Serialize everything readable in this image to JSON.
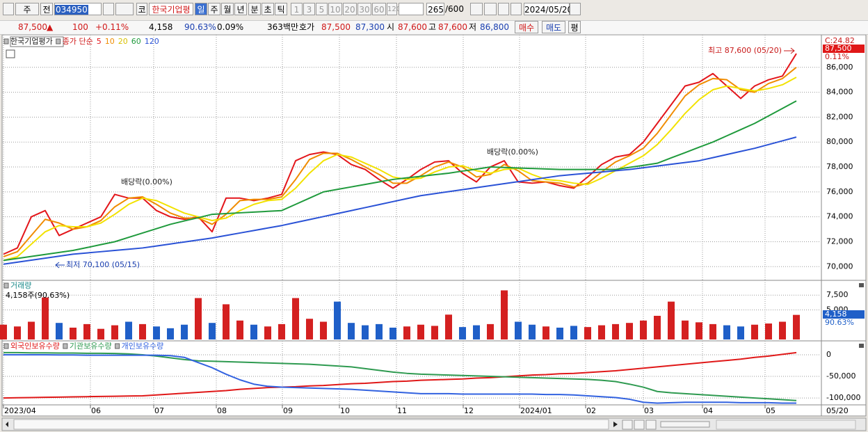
{
  "toolbar": {
    "period": "주",
    "scope": "전",
    "code": "034950",
    "market": "코",
    "name": "한국기업평",
    "intervals": [
      "일",
      "주",
      "월",
      "년",
      "분",
      "초",
      "틱"
    ],
    "units": [
      "1",
      "3",
      "5",
      "10",
      "20",
      "30",
      "60",
      "120"
    ],
    "count": "265",
    "count_max": "/600",
    "date": "2024/05/20"
  },
  "quote": {
    "price": "87,500",
    "direction": "▲",
    "change": "100",
    "change_pct": "+0.11%",
    "volume": "4,158",
    "volume_ratio": "90.63%",
    "turnover_pct": "0.09%",
    "amount": "363백만",
    "bid_ask_label": "호가",
    "ask": "87,500",
    "bid": "87,300",
    "open_label": "시",
    "open": "87,600",
    "high_label": "고",
    "high": "87,600",
    "low_label": "저",
    "low": "86,800",
    "buy": "매수",
    "sell": "매도",
    "avg": "평"
  },
  "chart_data": [
    {
      "type": "line",
      "title": "한국기업평가",
      "subtitle": "종가 단순",
      "series": [
        {
          "name": "5",
          "color": "#e3161b",
          "values": [
            71000,
            71500,
            74000,
            74500,
            72500,
            73000,
            73500,
            74000,
            75800,
            75500,
            75500,
            74500,
            74000,
            73800,
            74000,
            72800,
            75500,
            75500,
            75300,
            75500,
            75800,
            78500,
            79000,
            79200,
            79000,
            78200,
            77800,
            77000,
            76300,
            77000,
            77800,
            78400,
            78500,
            77500,
            76800,
            78000,
            78500,
            76800,
            76700,
            76800,
            76500,
            76300,
            77200,
            78200,
            78800,
            79000,
            80000,
            81500,
            83000,
            84500,
            84800,
            85500,
            84500,
            83500,
            84500,
            85000,
            85300,
            87100
          ]
        },
        {
          "name": "10",
          "color": "#f08c00",
          "values": [
            70800,
            71200,
            72500,
            73800,
            73500,
            73000,
            73200,
            73700,
            74800,
            75500,
            75600,
            75000,
            74300,
            73900,
            73900,
            73400,
            74200,
            75300,
            75400,
            75400,
            75600,
            77000,
            78600,
            79100,
            79100,
            78600,
            78000,
            77400,
            76700,
            76700,
            77300,
            78000,
            78400,
            78000,
            77200,
            77400,
            78200,
            77700,
            76900,
            76800,
            76700,
            76400,
            76700,
            77600,
            78400,
            78900,
            79500,
            80700,
            82200,
            83700,
            84600,
            85100,
            85000,
            84200,
            84000,
            84700,
            85100,
            86000
          ]
        },
        {
          "name": "20",
          "color": "#f2e200",
          "values": [
            70500,
            70800,
            71800,
            72800,
            73300,
            73200,
            73200,
            73500,
            74200,
            75000,
            75500,
            75300,
            74800,
            74300,
            74000,
            73700,
            73900,
            74500,
            75000,
            75300,
            75400,
            76300,
            77500,
            78500,
            79000,
            78800,
            78300,
            77800,
            77200,
            77000,
            77100,
            77600,
            78000,
            78100,
            77700,
            77500,
            77800,
            77900,
            77400,
            77000,
            76900,
            76700,
            76600,
            77100,
            77700,
            78300,
            78900,
            79800,
            81000,
            82300,
            83400,
            84200,
            84500,
            84300,
            84100,
            84300,
            84600,
            85200
          ]
        },
        {
          "name": "60",
          "color": "#1f9a3c",
          "values": [
            70500,
            70660,
            70820,
            70980,
            71140,
            71300,
            71530,
            71770,
            72000,
            72350,
            72700,
            73050,
            73400,
            73670,
            73930,
            74200,
            74260,
            74320,
            74380,
            74440,
            74500,
            75000,
            75500,
            76000,
            76200,
            76400,
            76600,
            76800,
            77000,
            77130,
            77250,
            77380,
            77500,
            77670,
            77830,
            78000,
            77960,
            77920,
            77880,
            77840,
            77800,
            77800,
            77800,
            77800,
            77800,
            77970,
            78130,
            78300,
            78730,
            79150,
            79580,
            80000,
            80500,
            81000,
            81500,
            82100,
            82700,
            83300
          ]
        },
        {
          "name": "120",
          "color": "#2a52d6",
          "values": [
            70200,
            70360,
            70520,
            70680,
            70840,
            71000,
            71100,
            71200,
            71300,
            71400,
            71500,
            71660,
            71820,
            71980,
            72140,
            72300,
            72500,
            72700,
            72900,
            73100,
            73300,
            73540,
            73780,
            74020,
            74260,
            74500,
            74740,
            74980,
            75220,
            75460,
            75700,
            75860,
            76020,
            76180,
            76340,
            76500,
            76660,
            76820,
            76980,
            77140,
            77300,
            77400,
            77500,
            77600,
            77700,
            77800,
            77940,
            78080,
            78220,
            78360,
            78500,
            78750,
            79000,
            79250,
            79500,
            79800,
            80100,
            80400
          ]
        }
      ],
      "ylim": [
        68900,
        88500
      ],
      "yticks": [
        {
          "value": 70000,
          "label": "70,000"
        },
        {
          "value": 72000,
          "label": "72,000"
        },
        {
          "value": 74000,
          "label": "74,000"
        },
        {
          "value": 76000,
          "label": "76,000"
        },
        {
          "value": 78000,
          "label": "78,000"
        },
        {
          "value": 80000,
          "label": "80,000"
        },
        {
          "value": 82000,
          "label": "82,000"
        },
        {
          "value": 84000,
          "label": "84,000"
        },
        {
          "value": 86000,
          "label": "86,000"
        }
      ],
      "annotations": [
        "최고 87,600 (05/20)",
        "최저 70,100 (05/15)",
        "배당락(0.00%)",
        "배당락(0.00%)"
      ],
      "axis_top": "C:24.82",
      "last_price": "87,500",
      "last_change": "0.11%"
    },
    {
      "type": "bar",
      "title": "거래량",
      "subtitle": "4,158주(90.63%)",
      "values": [
        2500,
        2200,
        3000,
        7100,
        2800,
        2000,
        2600,
        1800,
        2400,
        3000,
        2600,
        2200,
        1900,
        2500,
        7000,
        2800,
        5950,
        3200,
        2500,
        2200,
        2600,
        7000,
        3500,
        3000,
        6400,
        2800,
        2400,
        2600,
        2000,
        2200,
        2500,
        2300,
        4200,
        2100,
        2400,
        2600,
        8300,
        3000,
        2500,
        2200,
        2000,
        2300,
        2100,
        2400,
        2600,
        2800,
        3200,
        4000,
        6400,
        3200,
        2900,
        2600,
        2400,
        2200,
        2500,
        2700,
        3000,
        4158
      ],
      "colors": {
        "up": "#d42020",
        "down": "#1f5fc8"
      },
      "ylim": [
        0,
        9760
      ],
      "yticks": [
        {
          "value": 5000,
          "label": "5,000"
        },
        {
          "value": 7500,
          "label": "7,500"
        }
      ],
      "last_label": "4,158",
      "last_pct": "90.63%"
    },
    {
      "type": "line",
      "series": [
        {
          "name": "외국인보유수량",
          "color": "#e01818",
          "values": [
            -100000,
            -99500,
            -99000,
            -98500,
            -98000,
            -97500,
            -97000,
            -96500,
            -96000,
            -95500,
            -95000,
            -93000,
            -91000,
            -89000,
            -87000,
            -85000,
            -83000,
            -80000,
            -78000,
            -76000,
            -75000,
            -74000,
            -72000,
            -71000,
            -69000,
            -67000,
            -66000,
            -64000,
            -62000,
            -61000,
            -59000,
            -58000,
            -57000,
            -56000,
            -54000,
            -53000,
            -51000,
            -49000,
            -47000,
            -46000,
            -44000,
            -43000,
            -41000,
            -39000,
            -37000,
            -34000,
            -31000,
            -28000,
            -25000,
            -22000,
            -19000,
            -16000,
            -13000,
            -10000,
            -6000,
            -3000,
            1000,
            5000
          ]
        },
        {
          "name": "기관보유수량",
          "color": "#2e9a50",
          "values": [
            5000,
            5000,
            4500,
            4500,
            4000,
            4000,
            3500,
            3500,
            3000,
            2000,
            0,
            -3000,
            -7000,
            -11000,
            -14000,
            -15000,
            -16000,
            -17000,
            -18000,
            -19000,
            -20000,
            -21000,
            -22000,
            -24000,
            -26000,
            -28000,
            -32000,
            -36000,
            -40000,
            -43000,
            -45000,
            -46000,
            -47000,
            -48000,
            -49000,
            -50000,
            -51000,
            -52000,
            -53000,
            -54000,
            -55000,
            -56000,
            -57000,
            -59000,
            -62000,
            -68000,
            -75000,
            -85000,
            -88000,
            -90000,
            -92000,
            -94000,
            -96000,
            -98000,
            -100000,
            -102000,
            -104000,
            -106000
          ]
        },
        {
          "name": "개인보유수량",
          "color": "#3262e0",
          "values": [
            0,
            0,
            0,
            0,
            -500,
            -500,
            -1000,
            -1000,
            -1000,
            -1000,
            -1000,
            -1000,
            -2000,
            -6000,
            -18000,
            -30000,
            -45000,
            -58000,
            -68000,
            -73000,
            -75000,
            -76000,
            -77000,
            -78000,
            -79000,
            -80000,
            -82000,
            -84000,
            -86000,
            -88000,
            -90000,
            -90000,
            -90000,
            -91000,
            -91000,
            -91000,
            -91000,
            -91000,
            -91000,
            -92000,
            -92000,
            -93000,
            -95000,
            -97000,
            -99000,
            -103000,
            -110000,
            -112000,
            -111000,
            -110000,
            -110000,
            -110000,
            -110000,
            -111000,
            -111000,
            -111000,
            -112000,
            -112000
          ]
        }
      ],
      "ylim": [
        -116000,
        29000
      ],
      "yticks": [
        0,
        {
          "value": -50000,
          "label": "-50,000"
        },
        {
          "value": -100000,
          "label": "-100,000"
        }
      ],
      "xlim": [
        0,
        57
      ],
      "xticks": [
        {
          "value": 0,
          "label": "2023/04"
        },
        {
          "value": 6.25,
          "label": "06"
        },
        {
          "value": 10.8,
          "label": "07"
        },
        {
          "value": 15.3,
          "label": "08"
        },
        {
          "value": 20.05,
          "label": "09"
        },
        {
          "value": 24.15,
          "label": "10"
        },
        {
          "value": 28.25,
          "label": "11"
        },
        {
          "value": 33.05,
          "label": "12"
        },
        {
          "value": 37.1,
          "label": "2024/01"
        },
        {
          "value": 41.85,
          "label": "02"
        },
        {
          "value": 46,
          "label": "03"
        },
        {
          "value": 50.25,
          "label": "04"
        },
        {
          "value": 54.75,
          "label": "05"
        }
      ],
      "x_end_label": "05/20"
    }
  ]
}
